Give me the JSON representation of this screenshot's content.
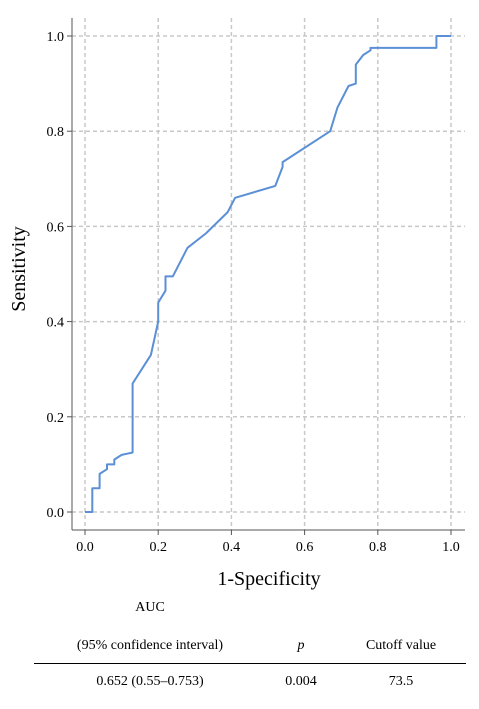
{
  "chart_data": {
    "type": "line",
    "title": "",
    "xlabel": "1-Specificity",
    "ylabel": "Sensitivity",
    "xlim": [
      0,
      1
    ],
    "ylim": [
      0,
      1
    ],
    "xticks": [
      "0.0",
      "0.2",
      "0.4",
      "0.6",
      "0.8",
      "1.0"
    ],
    "yticks": [
      "0.0",
      "0.2",
      "0.4",
      "0.6",
      "0.8",
      "1.0"
    ],
    "grid": true,
    "series": [
      {
        "x": [
          0,
          0.02,
          0.02,
          0.04,
          0.04,
          0.06,
          0.06,
          0.08,
          0.08,
          0.1,
          0.13,
          0.13,
          0.18,
          0.2,
          0.2,
          0.22,
          0.22,
          0.24,
          0.28,
          0.33,
          0.39,
          0.41,
          0.52,
          0.54,
          0.54,
          0.67,
          0.69,
          0.72,
          0.74,
          0.74,
          0.76,
          0.78,
          0.78,
          0.96,
          0.96,
          1.0
        ],
        "y": [
          0,
          0,
          0.05,
          0.05,
          0.08,
          0.09,
          0.1,
          0.1,
          0.11,
          0.12,
          0.125,
          0.27,
          0.33,
          0.4,
          0.44,
          0.465,
          0.495,
          0.495,
          0.555,
          0.585,
          0.63,
          0.66,
          0.685,
          0.725,
          0.735,
          0.8,
          0.85,
          0.895,
          0.9,
          0.94,
          0.96,
          0.97,
          0.975,
          0.975,
          1.0,
          1.0
        ]
      }
    ],
    "colors": {
      "curve": "#5b8fd6",
      "grid": "#c8c8c8",
      "axis": "#555555"
    }
  },
  "stats_table": {
    "header_auc_line1": "AUC",
    "header_auc_line2": "(95% confidence interval)",
    "header_p": "p",
    "header_cutoff": "Cutoff value",
    "auc_value": "0.652 (0.55–0.753)",
    "p_value": "0.004",
    "cutoff_value": "73.5"
  }
}
